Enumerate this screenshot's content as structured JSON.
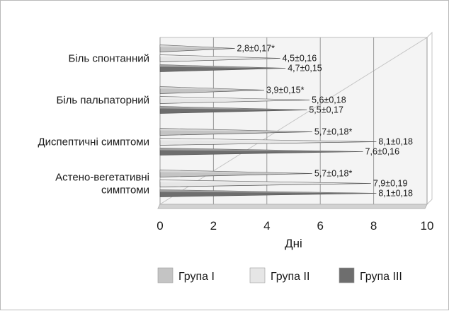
{
  "chart_data": {
    "type": "bar",
    "orientation": "horizontal",
    "categories": [
      "Біль спонтанний",
      "Біль пальпаторний",
      "Диспептичні симптоми",
      "Астено-вегетативні симптоми"
    ],
    "category_lines": [
      [
        "Біль спонтанний"
      ],
      [
        "Біль пальпаторний"
      ],
      [
        "Диспептичні симптоми"
      ],
      [
        "Астено-вегетативні",
        "симптоми"
      ]
    ],
    "series": [
      {
        "name": "Група I",
        "values": [
          2.8,
          3.9,
          5.7,
          5.7
        ],
        "labels": [
          "2,8±0,17*",
          "3,9±0,15*",
          "5,7±0,18*",
          "5,7±0,18*"
        ],
        "color": "#c4c4c4"
      },
      {
        "name": "Група II",
        "values": [
          4.5,
          5.6,
          8.1,
          7.9
        ],
        "labels": [
          "4,5±0,16",
          "5,6±0,18",
          "8,1±0,18",
          "7,9±0,19"
        ],
        "color": "#e6e6e6"
      },
      {
        "name": "Група III",
        "values": [
          4.7,
          5.5,
          7.6,
          8.1
        ],
        "labels": [
          "4,7±0,15",
          "5,5±0,17",
          "7,6±0,16",
          "8,1±0,18"
        ],
        "color": "#6e6e6e"
      }
    ],
    "xlabel": "Дні",
    "xlim": [
      0,
      10
    ],
    "xticks": [
      0,
      2,
      4,
      6,
      8,
      10
    ],
    "grid": true,
    "legend_position": "bottom"
  }
}
